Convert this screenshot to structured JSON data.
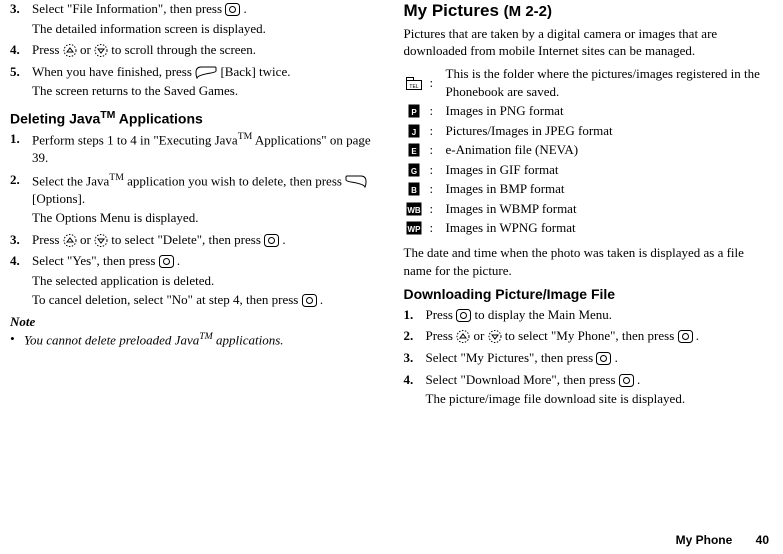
{
  "left": {
    "stepsA": [
      {
        "n": "3.",
        "lines": [
          "Select \"File Information\", then press @CIRCLE@ .",
          "The detailed information screen is displayed."
        ]
      },
      {
        "n": "4.",
        "lines": [
          "Press @UP@ or @DOWN@ to scroll through the screen."
        ]
      },
      {
        "n": "5.",
        "lines": [
          "When you have finished, press @LEFTSOFT@ [Back] twice.",
          "The screen returns to the Saved Games."
        ]
      }
    ],
    "heading_del": "Deleting Java™ Applications",
    "heading_del_html": "Deleting Java<sup>TM</sup> Applications",
    "stepsB": [
      {
        "n": "1.",
        "lines": [
          "Perform steps 1 to 4 in \"Executing Java<sup>TM</sup> Applications\" on page 39."
        ]
      },
      {
        "n": "2.",
        "lines": [
          "Select the Java<sup>TM</sup> application you wish to delete, then press @RIGHTSOFT@ [Options].",
          "The Options Menu is displayed."
        ]
      },
      {
        "n": "3.",
        "lines": [
          "Press @UP@ or @DOWN@ to select \"Delete\", then press @CIRCLE@ ."
        ]
      },
      {
        "n": "4.",
        "lines": [
          "Select \"Yes\", then press @CIRCLE@ .",
          "The selected application is deleted.",
          "To cancel deletion, select \"No\" at step 4, then press @CIRCLE@ ."
        ]
      }
    ],
    "note_label": "Note",
    "note_text": "You cannot delete preloaded Java<sup>TM</sup> applications."
  },
  "right": {
    "heading": "My Pictures",
    "menu_code": "(M 2-2)",
    "intro": "Pictures that are taken by a digital camera or images that are downloaded from mobile Internet sites can be managed.",
    "formats": [
      {
        "icon": "TEL",
        "text": "This is the folder where the pictures/images registered in the Phonebook are saved."
      },
      {
        "icon": "P",
        "text": "Images in PNG format"
      },
      {
        "icon": "J",
        "text": "Pictures/Images in JPEG format"
      },
      {
        "icon": "E",
        "text": "e-Animation file (NEVA)"
      },
      {
        "icon": "G",
        "text": "Images in GIF format"
      },
      {
        "icon": "B",
        "text": "Images in BMP format"
      },
      {
        "icon": "WB",
        "text": "Images in WBMP format"
      },
      {
        "icon": "WP",
        "text": "Images in WPNG format"
      }
    ],
    "date_note": "The date and time when the photo was taken is displayed as a file name for the picture.",
    "dl_heading": "Downloading Picture/Image File",
    "dl_steps": [
      {
        "n": "1.",
        "lines": [
          "Press @CIRCLE@ to display the Main Menu."
        ]
      },
      {
        "n": "2.",
        "lines": [
          "Press @UP@ or @DOWN@ to select \"My Phone\", then press @CIRCLE@ ."
        ]
      },
      {
        "n": "3.",
        "lines": [
          "Select \"My Pictures\", then press @CIRCLE@ ."
        ]
      },
      {
        "n": "4.",
        "lines": [
          "Select \"Download More\", then press @CIRCLE@ .",
          "The picture/image file download site is displayed."
        ]
      }
    ]
  },
  "footer": {
    "section": "My Phone",
    "page": "40"
  }
}
